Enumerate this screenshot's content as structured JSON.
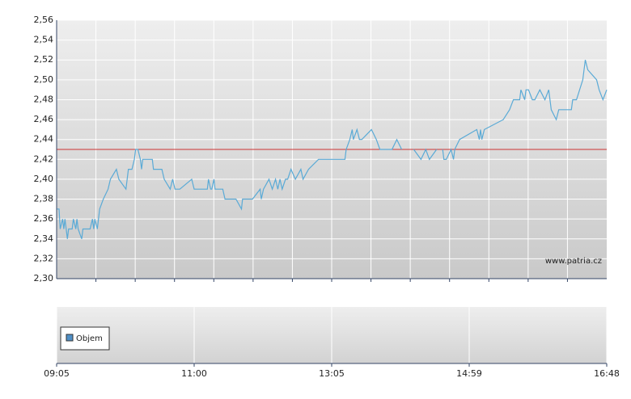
{
  "chart_data": {
    "type": "line",
    "color": "#5aaad6",
    "x": [
      "09:05",
      "09:07",
      "09:08",
      "09:10",
      "09:11",
      "09:12",
      "09:14",
      "09:15",
      "09:18",
      "09:19",
      "09:21",
      "09:22",
      "09:23",
      "09:26",
      "09:27",
      "09:33",
      "09:35",
      "09:36",
      "09:37",
      "09:39",
      "09:41",
      "09:44",
      "09:48",
      "09:50",
      "09:55",
      "09:57",
      "10:03",
      "10:05",
      "10:08",
      "10:10",
      "10:11",
      "10:13",
      "10:15",
      "10:16",
      "10:17",
      "10:25",
      "10:26",
      "10:33",
      "10:35",
      "10:40",
      "10:42",
      "10:44",
      "10:48",
      "10:58",
      "11:00",
      "11:02",
      "11:12",
      "11:13",
      "11:15",
      "11:16",
      "11:18",
      "11:19",
      "11:26",
      "11:28",
      "11:38",
      "11:43",
      "11:44",
      "11:53",
      "12:00",
      "12:01",
      "12:03",
      "12:08",
      "12:11",
      "12:14",
      "12:16",
      "12:18",
      "12:20",
      "12:23",
      "12:25",
      "12:28",
      "12:32",
      "12:37",
      "12:39",
      "12:44",
      "12:53",
      "13:16",
      "13:17",
      "13:20",
      "13:22",
      "13:23",
      "13:26",
      "13:28",
      "13:30",
      "13:38",
      "13:42",
      "13:45",
      "13:55",
      "13:59",
      "14:03",
      null,
      "14:13",
      "14:19",
      "14:23",
      "14:26",
      "14:32",
      null,
      "14:37",
      "14:38",
      "14:40",
      "14:44",
      "14:46",
      "14:47",
      "14:51",
      "15:05",
      "15:07",
      "15:08",
      "15:09",
      "15:11",
      "15:26",
      "15:31",
      "15:34",
      "15:39",
      "15:40",
      "15:43",
      "15:44",
      "15:46",
      "15:49",
      "15:51",
      "15:55",
      "15:59",
      "16:02",
      "16:04",
      "16:08",
      "16:10",
      "16:20",
      "16:21",
      "16:24",
      "16:29",
      "16:31",
      "16:33",
      "16:40",
      "16:42",
      "16:45",
      "16:48"
    ],
    "values": [
      2.37,
      2.37,
      2.35,
      2.36,
      2.35,
      2.36,
      2.34,
      2.35,
      2.35,
      2.36,
      2.35,
      2.36,
      2.35,
      2.34,
      2.35,
      2.35,
      2.36,
      2.35,
      2.36,
      2.35,
      2.37,
      2.38,
      2.39,
      2.4,
      2.41,
      2.4,
      2.39,
      2.41,
      2.41,
      2.42,
      2.43,
      2.43,
      2.42,
      2.41,
      2.42,
      2.42,
      2.41,
      2.41,
      2.4,
      2.39,
      2.4,
      2.39,
      2.39,
      2.4,
      2.39,
      2.39,
      2.39,
      2.4,
      2.39,
      2.39,
      2.4,
      2.39,
      2.39,
      2.38,
      2.38,
      2.37,
      2.38,
      2.38,
      2.39,
      2.38,
      2.39,
      2.4,
      2.39,
      2.4,
      2.39,
      2.4,
      2.39,
      2.4,
      2.4,
      2.41,
      2.4,
      2.41,
      2.4,
      2.41,
      2.42,
      2.42,
      2.43,
      2.44,
      2.45,
      2.44,
      2.45,
      2.44,
      2.44,
      2.45,
      2.44,
      2.43,
      2.43,
      2.44,
      2.43,
      null,
      2.43,
      2.42,
      2.43,
      2.42,
      2.43,
      null,
      2.43,
      2.42,
      2.42,
      2.43,
      2.42,
      2.43,
      2.44,
      2.45,
      2.44,
      2.45,
      2.44,
      2.45,
      2.46,
      2.47,
      2.48,
      2.48,
      2.49,
      2.48,
      2.49,
      2.49,
      2.48,
      2.48,
      2.49,
      2.48,
      2.49,
      2.47,
      2.46,
      2.47,
      2.47,
      2.48,
      2.48,
      2.5,
      2.52,
      2.51,
      2.5,
      2.49,
      2.48,
      2.49
    ],
    "ylim": [
      2.3,
      2.56
    ],
    "yticks": [
      {
        "value": 2.3,
        "label": "2,30"
      },
      {
        "value": 2.32,
        "label": "2,32"
      },
      {
        "value": 2.34,
        "label": "2,34"
      },
      {
        "value": 2.36,
        "label": "2,36"
      },
      {
        "value": 2.38,
        "label": "2,38"
      },
      {
        "value": 2.4,
        "label": "2,40"
      },
      {
        "value": 2.42,
        "label": "2,42"
      },
      {
        "value": 2.44,
        "label": "2,44"
      },
      {
        "value": 2.46,
        "label": "2,46"
      },
      {
        "value": 2.48,
        "label": "2,48"
      },
      {
        "value": 2.5,
        "label": "2,50"
      },
      {
        "value": 2.52,
        "label": "2,52"
      },
      {
        "value": 2.54,
        "label": "2,54"
      },
      {
        "value": 2.56,
        "label": "2,56"
      }
    ],
    "xticks": [
      "09:05",
      "11:00",
      "13:05",
      "14:59",
      "16:48"
    ],
    "reference_line": {
      "value": 2.43,
      "color": "#cc3333"
    },
    "watermark": "www.patria.cz",
    "volume": {
      "name": "Objem",
      "color": "#4f8fc6"
    },
    "grid": true
  }
}
